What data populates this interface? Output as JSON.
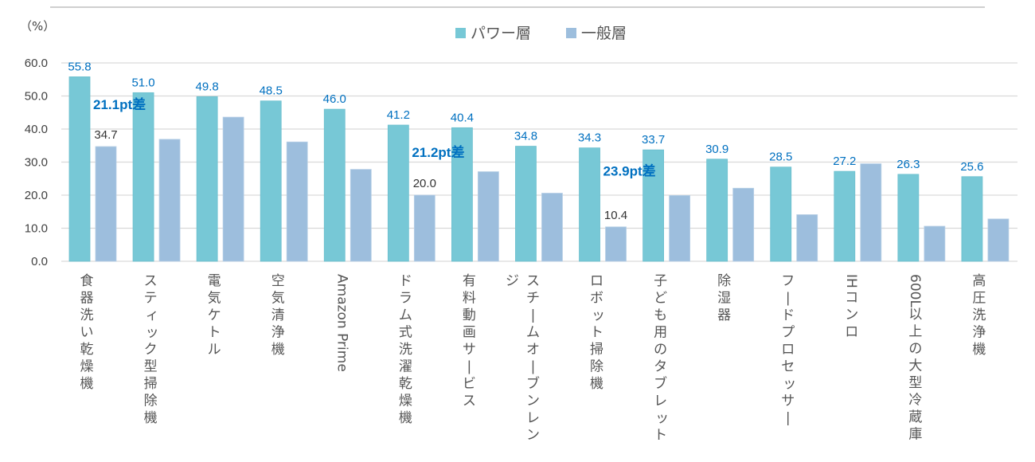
{
  "chart_data": {
    "type": "bar",
    "title": "",
    "unit_label": "（%）",
    "xlabel": "",
    "ylabel": "（%）",
    "ylim": [
      0,
      60
    ],
    "yticks": [
      "0.0",
      "10.0",
      "20.0",
      "30.0",
      "40.0",
      "50.0",
      "60.0"
    ],
    "grid": true,
    "legend_position": "top-center",
    "categories": [
      "食器洗い乾燥機",
      "スティック型掃除機",
      "電気ケトル",
      "空気清浄機",
      "Amazon Prime",
      "ドラム式洗濯乾燥機",
      "有料動画サービス",
      "スチームオーブンレンジ",
      "ロボット掃除機",
      "子ども用のタブレット",
      "除湿器",
      "フードプロセッサー",
      "IHコンロ",
      "600L以上の大型冷蔵庫",
      "高圧洗浄機"
    ],
    "series": [
      {
        "name": "パワー層",
        "color": "#77C8D6",
        "values": [
          55.8,
          51.0,
          49.8,
          48.5,
          46.0,
          41.2,
          40.4,
          34.8,
          34.3,
          33.7,
          30.9,
          28.5,
          27.2,
          26.3,
          25.6
        ],
        "labels": [
          "55.8",
          "51.0",
          "49.8",
          "48.5",
          "46.0",
          "41.2",
          "40.4",
          "34.8",
          "34.3",
          "33.7",
          "30.9",
          "28.5",
          "27.2",
          "26.3",
          "25.6"
        ]
      },
      {
        "name": "一般層",
        "color": "#9DBEDD",
        "values": [
          34.7,
          36.9,
          43.6,
          36.1,
          27.8,
          20.0,
          27.1,
          20.6,
          10.4,
          19.9,
          22.1,
          14.1,
          29.5,
          10.6,
          12.8
        ],
        "labels": [
          "34.7",
          null,
          null,
          null,
          null,
          "20.0",
          null,
          null,
          "10.4",
          null,
          null,
          null,
          null,
          null,
          null
        ]
      }
    ],
    "annotations": [
      {
        "category_index": 0,
        "text": "21.1pt差",
        "value": 47.5
      },
      {
        "category_index": 5,
        "text": "21.2pt差",
        "value": 33.0
      },
      {
        "category_index": 8,
        "text": "23.9pt差",
        "value": 27.3
      }
    ],
    "label_colors": {
      "power_value": "#0070C0",
      "general_value": "#333333",
      "diff": "#0070C0"
    }
  }
}
